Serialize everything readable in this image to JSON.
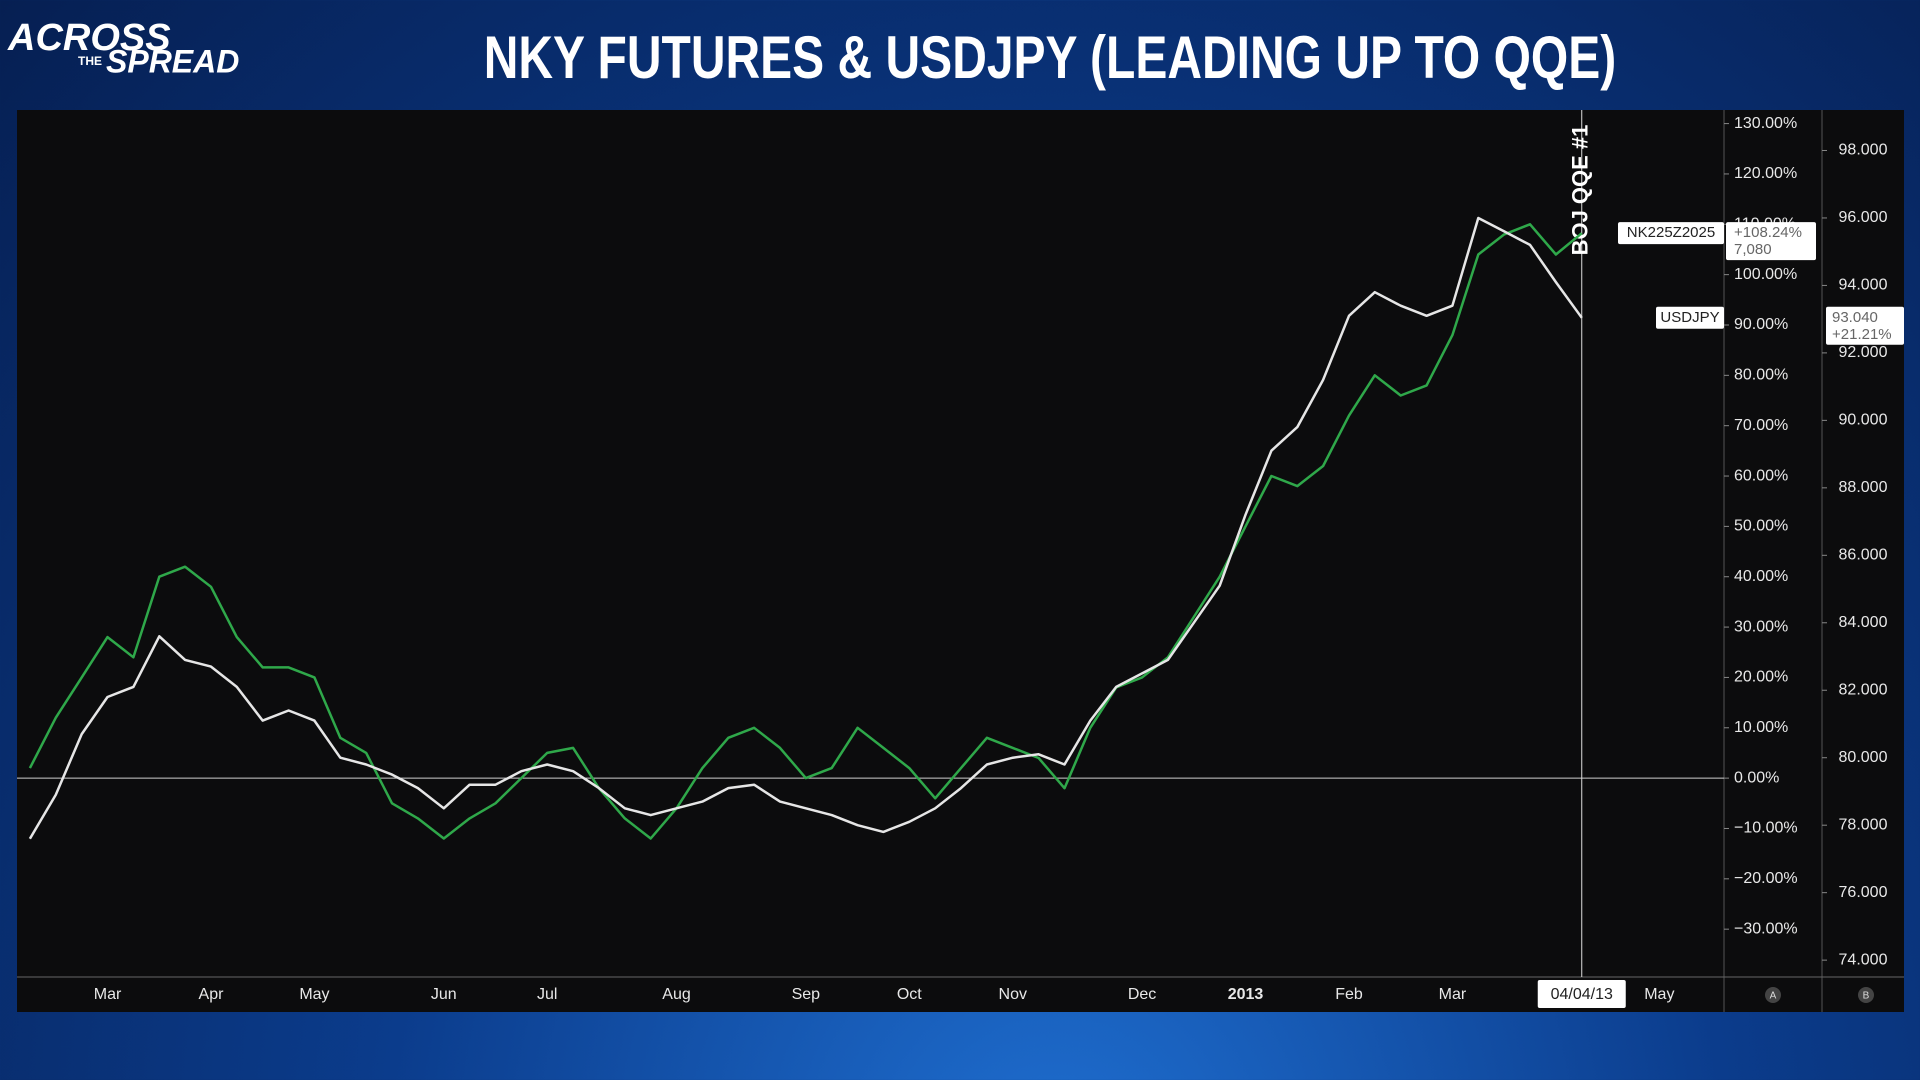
{
  "logo": {
    "line1": "ACROSS",
    "line2": "THE",
    "line3": "SPREAD"
  },
  "chart_data": {
    "type": "line",
    "title": "NKY FUTURES & USDJPY (LEADING UP TO QQE)",
    "categories": [
      null,
      null,
      null,
      "Mar",
      null,
      null,
      null,
      "Apr",
      null,
      null,
      null,
      "May",
      null,
      null,
      null,
      null,
      "Jun",
      null,
      null,
      null,
      "Jul",
      null,
      null,
      null,
      null,
      "Aug",
      null,
      null,
      null,
      null,
      "Sep",
      null,
      null,
      null,
      "Oct",
      null,
      null,
      null,
      "Nov",
      null,
      null,
      null,
      null,
      "Dec",
      null,
      null,
      null,
      "2013",
      null,
      null,
      null,
      "Feb",
      null,
      null,
      null,
      "Mar",
      null,
      null,
      null,
      null,
      "04/04/13",
      null,
      null,
      "May",
      null,
      null
    ],
    "series": [
      {
        "name": "NK225Z2025",
        "color": "#2fa84a",
        "values": [
          2,
          12,
          20,
          28,
          24,
          40,
          42,
          38,
          28,
          22,
          22,
          20,
          8,
          5,
          -5,
          -8,
          -12,
          -8,
          -5,
          0,
          5,
          6,
          -2,
          -8,
          -12,
          -6,
          2,
          8,
          10,
          6,
          0,
          2,
          10,
          6,
          2,
          -4,
          2,
          8,
          6,
          4,
          -2,
          10,
          18,
          20,
          24,
          32,
          40,
          50,
          60,
          58,
          62,
          72,
          80,
          76,
          78,
          88,
          104,
          108,
          110,
          104,
          108.24,
          null,
          null,
          null,
          null,
          null
        ],
        "value_labels": [
          null,
          null,
          null,
          null,
          null,
          null,
          null,
          null,
          null,
          null,
          null,
          null,
          null,
          null,
          null,
          null,
          null,
          null,
          null,
          null,
          null,
          null,
          null,
          null,
          null,
          null,
          null,
          null,
          null,
          null,
          null,
          null,
          null,
          null,
          null,
          null,
          null,
          null,
          null,
          null,
          null,
          null,
          null,
          null,
          null,
          null,
          null,
          null,
          null,
          null,
          null,
          null,
          null,
          null,
          null,
          null,
          null,
          null,
          null,
          null,
          "+108.24%",
          null,
          null,
          null,
          null,
          null
        ],
        "last_price": "7,080"
      },
      {
        "name": "USDJPY",
        "color": "#e6e6e6",
        "axis": "y2",
        "values": [
          77.6,
          78.9,
          80.7,
          81.8,
          82.1,
          83.6,
          82.9,
          82.7,
          82.1,
          81.1,
          81.4,
          81.1,
          80,
          79.8,
          79.5,
          79.1,
          78.5,
          79.2,
          79.2,
          79.6,
          79.8,
          79.6,
          79.1,
          78.5,
          78.3,
          78.5,
          78.7,
          79.1,
          79.2,
          78.7,
          78.5,
          78.3,
          78,
          77.8,
          78.1,
          78.5,
          79.1,
          79.8,
          80,
          80.1,
          79.8,
          81.1,
          82.1,
          82.5,
          82.9,
          84,
          85.1,
          87.2,
          89.1,
          89.8,
          91.2,
          93.1,
          93.8,
          93.4,
          93.1,
          93.4,
          96,
          95.6,
          95.2,
          94.1,
          93.04,
          null,
          null,
          null,
          null,
          null
        ],
        "value_labels": [
          null,
          null,
          null,
          null,
          null,
          null,
          null,
          null,
          null,
          null,
          null,
          null,
          null,
          null,
          null,
          null,
          null,
          null,
          null,
          null,
          null,
          null,
          null,
          null,
          null,
          null,
          null,
          null,
          null,
          null,
          null,
          null,
          null,
          null,
          null,
          null,
          null,
          null,
          null,
          null,
          null,
          null,
          null,
          null,
          null,
          null,
          null,
          null,
          null,
          null,
          null,
          null,
          null,
          null,
          null,
          null,
          null,
          null,
          null,
          null,
          "93.040",
          null,
          null,
          null,
          null,
          null
        ],
        "change_label": "+21.21%"
      }
    ],
    "ylim": [
      -39.5,
      132.7
    ],
    "yticks": [
      {
        "value": -30,
        "label": "−30.00%"
      },
      {
        "value": -20,
        "label": "−20.00%"
      },
      {
        "value": -10,
        "label": "−10.00%"
      },
      {
        "value": 0,
        "label": "0.00%"
      },
      {
        "value": 10,
        "label": "10.00%"
      },
      {
        "value": 20,
        "label": "20.00%"
      },
      {
        "value": 30,
        "label": "30.00%"
      },
      {
        "value": 40,
        "label": "40.00%"
      },
      {
        "value": 50,
        "label": "50.00%"
      },
      {
        "value": 60,
        "label": "60.00%"
      },
      {
        "value": 70,
        "label": "70.00%"
      },
      {
        "value": 80,
        "label": "80.00%"
      },
      {
        "value": 90,
        "label": "90.00%"
      },
      {
        "value": 100,
        "label": "100.00%"
      },
      {
        "value": 110,
        "label": "110.00%"
      },
      {
        "value": 120,
        "label": "120.00%"
      },
      {
        "value": 130,
        "label": "130.00%"
      }
    ],
    "y2lim": [
      73.5,
      99.2
    ],
    "y2ticks": [
      {
        "value": 74,
        "label": "74.000"
      },
      {
        "value": 76,
        "label": "76.000"
      },
      {
        "value": 78,
        "label": "78.000"
      },
      {
        "value": 80,
        "label": "80.000"
      },
      {
        "value": 82,
        "label": "82.000"
      },
      {
        "value": 84,
        "label": "84.000"
      },
      {
        "value": 86,
        "label": "86.000"
      },
      {
        "value": 88,
        "label": "88.000"
      },
      {
        "value": 90,
        "label": "90.000"
      },
      {
        "value": 92,
        "label": "92.000"
      },
      {
        "value": 94,
        "label": "94.000"
      },
      {
        "value": 96,
        "label": "96.000"
      },
      {
        "value": 98,
        "label": "98.000"
      }
    ],
    "grid": false,
    "zero_line": true,
    "annotations": [
      {
        "text": "BOJ QQE #1",
        "x": "04/04/13"
      }
    ],
    "axis_buttons": [
      "A",
      "B"
    ]
  }
}
